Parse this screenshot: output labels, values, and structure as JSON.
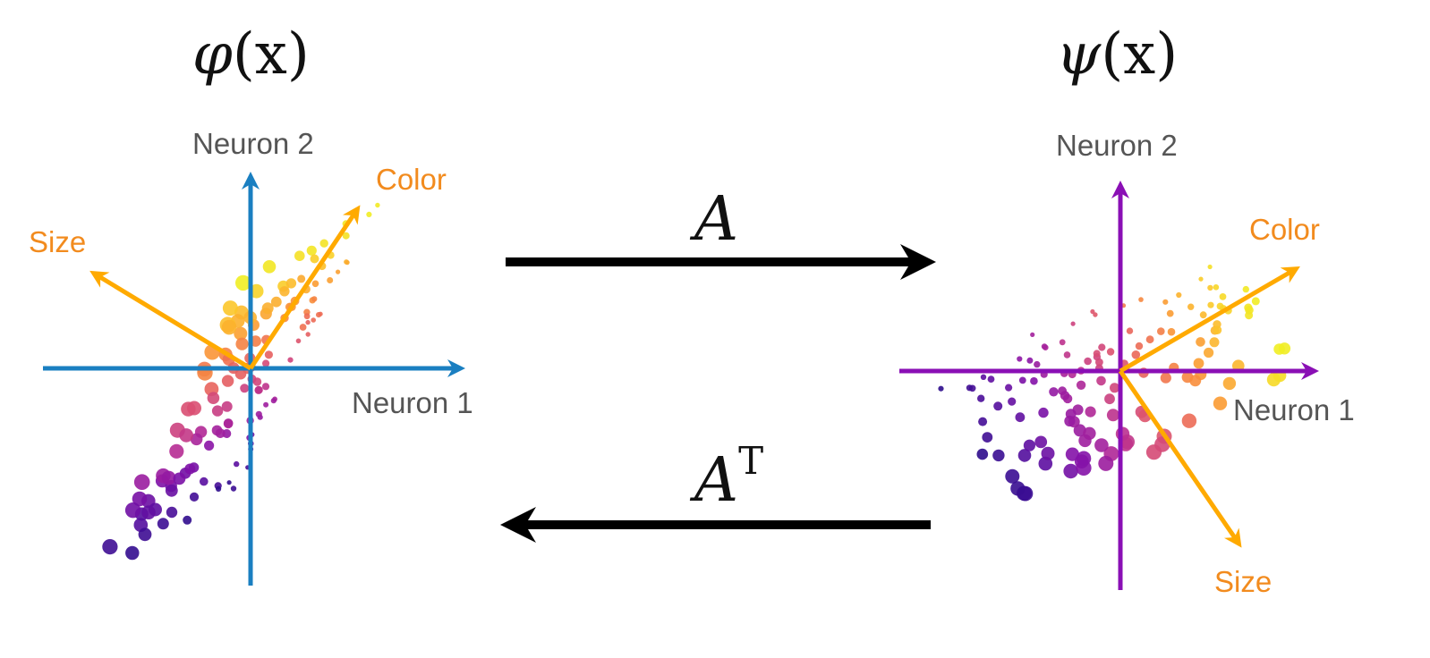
{
  "left_panel": {
    "title_fn": "φ",
    "title_arg": "(x)",
    "axis_x_label": "Neuron 1",
    "axis_y_label": "Neuron 2",
    "axis_color": "#1a7fc1",
    "feature_color_label": "Color",
    "feature_size_label": "Size"
  },
  "right_panel": {
    "title_fn": "ψ",
    "title_arg": "(x)",
    "axis_x_label": "Neuron 1",
    "axis_y_label": "Neuron 2",
    "axis_color": "#8a0fb5",
    "feature_color_label": "Color",
    "feature_size_label": "Size"
  },
  "forward_map": {
    "symbol": "A"
  },
  "backward_map": {
    "symbol": "A",
    "superscript": "T"
  },
  "colors": {
    "feature_arrow": "#ffaa00",
    "feature_label": "#f28b1e",
    "map_arrow": "#000000",
    "palette": [
      "#2d0c8c",
      "#5a0ea0",
      "#8612a8",
      "#b42a95",
      "#d84d74",
      "#ef6f52",
      "#fb9a33",
      "#fcc62a",
      "#f0f023"
    ]
  }
}
